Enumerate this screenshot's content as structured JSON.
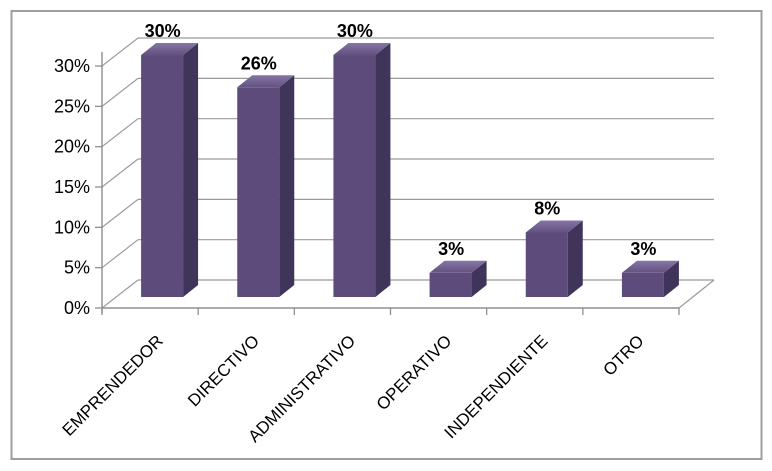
{
  "chart_data": {
    "type": "bar",
    "style": "3d-clustered-column",
    "title": "",
    "categories": [
      "EMPRENDEDOR",
      "DIRECTIVO",
      "ADMINISTRATIVO",
      "OPERATIVO",
      "INDEPENDIENTE",
      "OTRO"
    ],
    "values": [
      30,
      26,
      30,
      3,
      8,
      3
    ],
    "data_labels": [
      "30%",
      "26%",
      "30%",
      "3%",
      "8%",
      "3%"
    ],
    "y_axis": {
      "ticks": [
        "0%",
        "5%",
        "10%",
        "15%",
        "20%",
        "25%",
        "30%"
      ],
      "min": 0,
      "max": 30,
      "step": 5,
      "unit": "percent"
    },
    "x_axis": {
      "label_rotation_deg": 45
    },
    "legend": {
      "visible": false
    },
    "grid": true,
    "colors": {
      "bar_front": "#5D4B7C",
      "bar_side": "#41345A",
      "bar_top_light": "#8576A5",
      "bar_top_dark": "#635180",
      "gridline": "#9B9B9B",
      "axis": "#8F8F8F",
      "text": "#000000",
      "data_label": "#000000",
      "border": "#9E9E9E",
      "background": "#FFFFFF"
    }
  }
}
